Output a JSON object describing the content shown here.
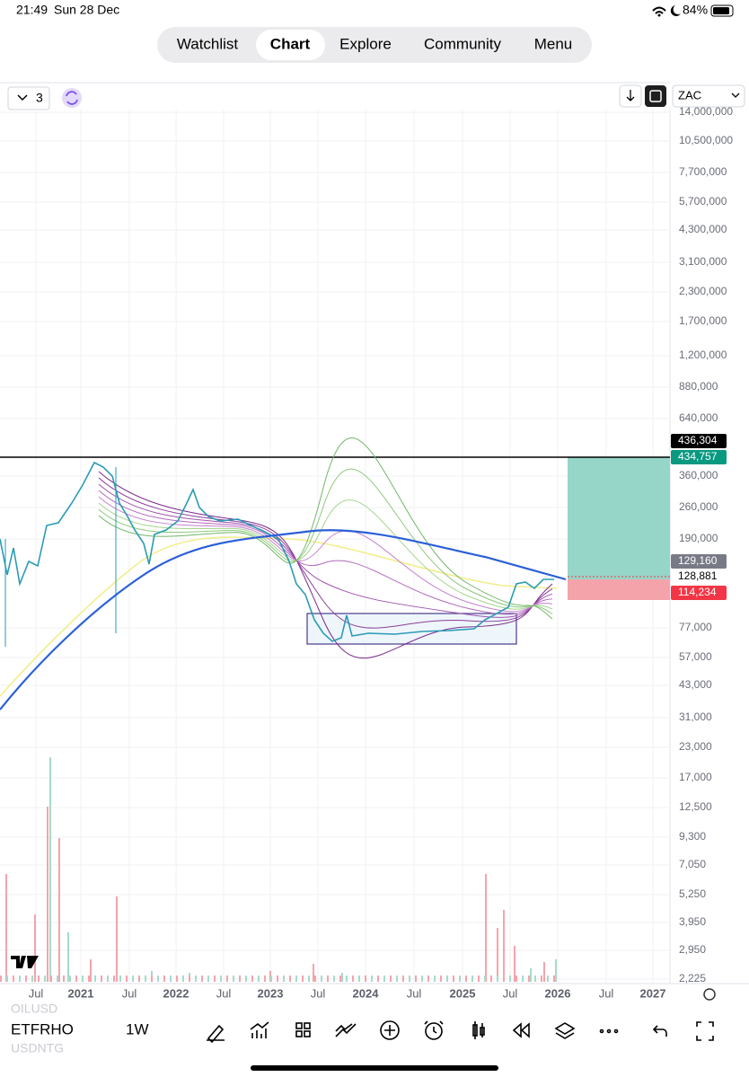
{
  "status_bar": {
    "time": "21:49",
    "date": "Sun 28 Dec",
    "battery": "84%"
  },
  "nav": {
    "tabs": [
      "Watchlist",
      "Chart",
      "Explore",
      "Community",
      "Menu"
    ],
    "active": 1
  },
  "toolbar": {
    "layout_count": "3",
    "currency": "ZAC"
  },
  "price_axis": {
    "labels": [
      "14,000,000",
      "10,500,000",
      "7,700,000",
      "5,700,000",
      "4,300,000",
      "3,100,000",
      "2,300,000",
      "1,700,000",
      "1,200,000",
      "880,000",
      "640,000",
      "360,000",
      "260,000",
      "190,000",
      "77,000",
      "57,000",
      "43,000",
      "31,000",
      "23,000",
      "17,000",
      "12,500",
      "9,300",
      "7,050",
      "5,250",
      "3,950",
      "2,950",
      "2,225"
    ]
  },
  "price_tags": [
    {
      "label": "436,304",
      "background": "#000000",
      "text_color": "#ffffff"
    },
    {
      "label": "434,757",
      "background": "#089981",
      "text_color": "#ffffff"
    },
    {
      "label": "129,160",
      "background": "#787b86",
      "text_color": "#ffffff"
    },
    {
      "label": "128,881",
      "background": "#ffffff",
      "text_color": "#000000"
    },
    {
      "label": "114,234",
      "background": "#f23645",
      "text_color": "#ffffff"
    }
  ],
  "time_axis": {
    "labels": [
      "Jul",
      "2021",
      "Jul",
      "2022",
      "Jul",
      "2023",
      "Jul",
      "2024",
      "Jul",
      "2025",
      "Jul",
      "2026",
      "Jul",
      "2027"
    ]
  },
  "symbol": {
    "name": "ETFRHO",
    "interval": "1W",
    "faded_above": "OILUSD",
    "faded_below": "USDNTG"
  }
}
